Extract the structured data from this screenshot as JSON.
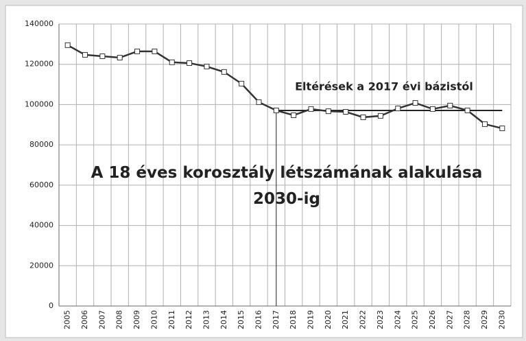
{
  "chart_data": {
    "type": "line",
    "title": "A 18 éves korosztály létszámának alakulása 2030-ig",
    "categories": [
      "2005",
      "2006",
      "2007",
      "2008",
      "2009",
      "2010",
      "2011",
      "2012",
      "2013",
      "2014",
      "2015",
      "2016",
      "2017",
      "2018",
      "2019",
      "2020",
      "2021",
      "2022",
      "2023",
      "2024",
      "2025",
      "2026",
      "2027",
      "2028",
      "2029",
      "2030"
    ],
    "series": [
      {
        "name": null,
        "color": "#333333",
        "values": [
          129500,
          124700,
          124000,
          123300,
          126400,
          126400,
          121000,
          120600,
          118900,
          116200,
          110400,
          101200,
          97100,
          94700,
          97800,
          96700,
          96400,
          93700,
          94400,
          98100,
          100800,
          97800,
          99500,
          97100,
          90300,
          88200
        ]
      }
    ],
    "reference": {
      "label": "Eltérések a 2017 évi bázistól",
      "value": 97100,
      "start_category": "2017"
    },
    "ylim": [
      0,
      140000
    ],
    "yticks": [
      0,
      20000,
      40000,
      60000,
      80000,
      100000,
      120000,
      140000
    ],
    "grid": true
  }
}
